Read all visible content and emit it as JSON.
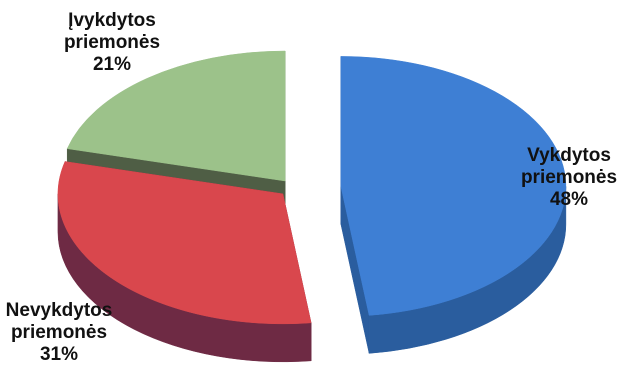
{
  "chart_data": {
    "type": "pie",
    "style": "3d-exploded",
    "slices": [
      {
        "line1": "Vykdytos",
        "line2": "priemonės",
        "percent": "48%",
        "value": 48,
        "color": "#3e7fd4",
        "side_color": "#2a5d9e"
      },
      {
        "line1": "Nevykdytos",
        "line2": "priemonės",
        "percent": "31%",
        "value": 31,
        "color": "#d9474d",
        "side_color": "#6e2a44"
      },
      {
        "line1": "Įvykdytos",
        "line2": "priemonės",
        "percent": "21%",
        "value": 21,
        "color": "#9cc28a",
        "side_color": "#4f5e45"
      }
    ]
  }
}
